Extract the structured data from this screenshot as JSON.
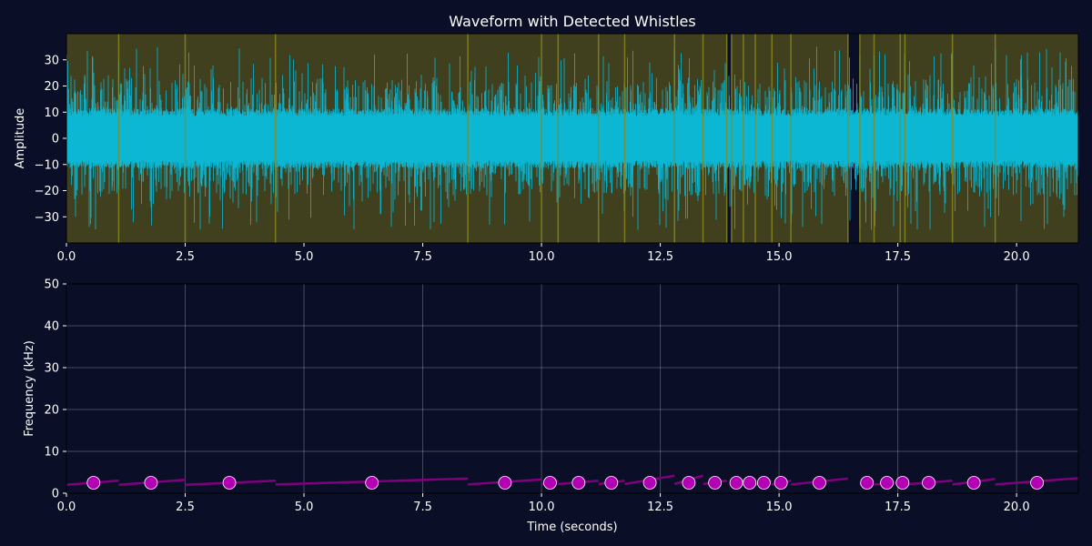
{
  "chart_data": [
    {
      "type": "line",
      "title": "Waveform with Detected Whistles",
      "xlabel": "",
      "ylabel": "Amplitude",
      "xlim": [
        0,
        21.3
      ],
      "ylim": [
        -40,
        40
      ],
      "x_ticks": [
        "0.0",
        "2.5",
        "5.0",
        "7.5",
        "10.0",
        "12.5",
        "15.0",
        "17.5",
        "20.0"
      ],
      "x_tick_values": [
        0,
        2.5,
        5,
        7.5,
        10,
        12.5,
        15,
        17.5,
        20
      ],
      "y_ticks": [
        "30",
        "20",
        "10",
        "0",
        "−10",
        "−20",
        "−30"
      ],
      "y_tick_values": [
        30,
        20,
        10,
        0,
        -10,
        -20,
        -30
      ],
      "grid": false,
      "waveform": {
        "amplitude_core": 10,
        "amplitude_peak": 35,
        "color": "#0cb7d4"
      },
      "detection_regions": [
        [
          0,
          13.9
        ],
        [
          14.0,
          16.45
        ],
        [
          16.7,
          21.3
        ]
      ],
      "region_color": "#40401f",
      "edge_lines": [
        1.1,
        2.5,
        4.4,
        8.45,
        10.0,
        10.35,
        11.2,
        11.75,
        12.8,
        13.4,
        13.9,
        14.0,
        14.25,
        14.5,
        14.85,
        15.25,
        16.45,
        16.7,
        17.0,
        17.55,
        17.65,
        18.65,
        19.55
      ],
      "edge_line_color": "#8a8a1c"
    },
    {
      "type": "scatter",
      "title": "",
      "xlabel": "Time (seconds)",
      "ylabel": "Frequency (kHz)",
      "xlim": [
        0,
        21.3
      ],
      "ylim": [
        0,
        50
      ],
      "x_ticks": [
        "0.0",
        "2.5",
        "5.0",
        "7.5",
        "10.0",
        "12.5",
        "15.0",
        "17.5",
        "20.0"
      ],
      "x_tick_values": [
        0,
        2.5,
        5,
        7.5,
        10,
        12.5,
        15,
        17.5,
        20
      ],
      "y_ticks": [
        "0",
        "10",
        "20",
        "30",
        "40",
        "50"
      ],
      "y_tick_values": [
        0,
        10,
        20,
        30,
        40,
        50
      ],
      "grid": true,
      "contours": [
        {
          "x": [
            0,
            1.1
          ],
          "y": [
            2.0,
            3.0
          ]
        },
        {
          "x": [
            1.1,
            2.5
          ],
          "y": [
            2.0,
            3.2
          ]
        },
        {
          "x": [
            2.5,
            4.4
          ],
          "y": [
            2.0,
            3.0
          ]
        },
        {
          "x": [
            4.4,
            8.45
          ],
          "y": [
            2.1,
            3.5
          ]
        },
        {
          "x": [
            8.45,
            10.0
          ],
          "y": [
            2.1,
            3.3
          ]
        },
        {
          "x": [
            10.0,
            10.35
          ],
          "y": [
            2.1,
            3.0
          ]
        },
        {
          "x": [
            10.35,
            11.2
          ],
          "y": [
            2.2,
            3.0
          ]
        },
        {
          "x": [
            11.2,
            11.75
          ],
          "y": [
            2.2,
            3.0
          ]
        },
        {
          "x": [
            11.75,
            12.8
          ],
          "y": [
            2.2,
            4.2
          ]
        },
        {
          "x": [
            12.8,
            13.4
          ],
          "y": [
            2.2,
            4.2
          ]
        },
        {
          "x": [
            13.4,
            13.9
          ],
          "y": [
            2.2,
            3.0
          ]
        },
        {
          "x": [
            14.0,
            14.25
          ],
          "y": [
            2.2,
            3.0
          ]
        },
        {
          "x": [
            14.25,
            14.5
          ],
          "y": [
            2.1,
            2.6
          ]
        },
        {
          "x": [
            14.5,
            14.85
          ],
          "y": [
            2.1,
            3.0
          ]
        },
        {
          "x": [
            14.85,
            15.25
          ],
          "y": [
            2.1,
            3.0
          ]
        },
        {
          "x": [
            15.25,
            16.45
          ],
          "y": [
            2.1,
            3.5
          ]
        },
        {
          "x": [
            16.7,
            17.0
          ],
          "y": [
            2.1,
            2.6
          ]
        },
        {
          "x": [
            17.0,
            17.55
          ],
          "y": [
            2.1,
            2.6
          ]
        },
        {
          "x": [
            17.55,
            17.65
          ],
          "y": [
            2.1,
            3.0
          ]
        },
        {
          "x": [
            17.65,
            18.65
          ],
          "y": [
            2.1,
            3.0
          ]
        },
        {
          "x": [
            18.65,
            19.55
          ],
          "y": [
            2.1,
            3.4
          ]
        },
        {
          "x": [
            19.55,
            21.3
          ],
          "y": [
            2.1,
            3.6
          ]
        }
      ],
      "points": [
        {
          "x": 0.57,
          "y": 2.5
        },
        {
          "x": 1.78,
          "y": 2.5
        },
        {
          "x": 3.43,
          "y": 2.5
        },
        {
          "x": 6.43,
          "y": 2.5
        },
        {
          "x": 9.23,
          "y": 2.5
        },
        {
          "x": 10.18,
          "y": 2.5
        },
        {
          "x": 10.78,
          "y": 2.5
        },
        {
          "x": 11.47,
          "y": 2.5
        },
        {
          "x": 12.28,
          "y": 2.5
        },
        {
          "x": 13.1,
          "y": 2.5
        },
        {
          "x": 13.65,
          "y": 2.5
        },
        {
          "x": 14.1,
          "y": 2.5
        },
        {
          "x": 14.38,
          "y": 2.5
        },
        {
          "x": 14.68,
          "y": 2.5
        },
        {
          "x": 15.04,
          "y": 2.5
        },
        {
          "x": 15.85,
          "y": 2.5
        },
        {
          "x": 16.85,
          "y": 2.5
        },
        {
          "x": 17.27,
          "y": 2.5
        },
        {
          "x": 17.6,
          "y": 2.5
        },
        {
          "x": 18.15,
          "y": 2.5
        },
        {
          "x": 19.1,
          "y": 2.5
        },
        {
          "x": 20.43,
          "y": 2.5
        }
      ],
      "contour_color": "#800080",
      "point_color": "#b400b4"
    }
  ]
}
